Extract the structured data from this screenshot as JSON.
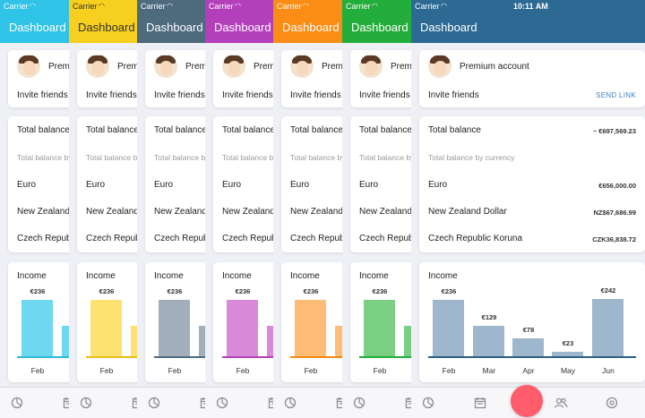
{
  "status": {
    "carrier": "Carrier",
    "time": "10:11 AM"
  },
  "nav": {
    "title": "Dashboard"
  },
  "account": {
    "name": "Premium account",
    "invite": "Invite friends",
    "send_link": "SEND LINK"
  },
  "balance": {
    "total_label": "Total balance",
    "total_value": "~ €697,569.23",
    "by_currency": "Total balance by currency",
    "rows": [
      {
        "name": "Euro",
        "value": "€656,000.00"
      },
      {
        "name": "New Zealand Dollar",
        "value": "NZ$67,686.99"
      },
      {
        "name": "Czech Republic Koruna",
        "value": "CZK36,838.72"
      }
    ]
  },
  "income": {
    "title": "Income",
    "bars": [
      {
        "month": "Feb",
        "label": "€236",
        "value": 236
      },
      {
        "month": "Mar",
        "label": "€129",
        "value": 129
      },
      {
        "month": "Apr",
        "label": "€78",
        "value": 78
      },
      {
        "month": "May",
        "label": "€23",
        "value": 23
      },
      {
        "month": "Jun",
        "label": "€242",
        "value": 242
      }
    ]
  },
  "themes": [
    {
      "name": "cyan",
      "nav": "#2fc3e8",
      "title": "#ffffff",
      "bar": "#6ed8f0",
      "axis": "#2fb9dd"
    },
    {
      "name": "yellow",
      "nav": "#f6cf1f",
      "title": "#333333",
      "bar": "#fde272",
      "axis": "#e8be16"
    },
    {
      "name": "slate",
      "nav": "#4e6a7d",
      "title": "#ffffff",
      "bar": "#a2afba",
      "axis": "#4e6a7d"
    },
    {
      "name": "purple",
      "nav": "#b43fbb",
      "title": "#ffffff",
      "bar": "#d98ad9",
      "axis": "#b43fbb"
    },
    {
      "name": "orange",
      "nav": "#fb8d16",
      "title": "#ffffff",
      "bar": "#fdbd76",
      "axis": "#f08a16"
    },
    {
      "name": "green",
      "nav": "#23ad3a",
      "title": "#ffffff",
      "bar": "#7bcf82",
      "axis": "#23ad3a"
    },
    {
      "name": "steel",
      "nav": "#2c6a93",
      "title": "#ffffff",
      "bar": "#9fb7cc",
      "axis": "#2c5f85"
    }
  ],
  "tabs": [
    {
      "icon": "pie-chart-icon"
    },
    {
      "icon": "calendar-icon"
    },
    {
      "icon": "add-icon"
    },
    {
      "icon": "people-icon"
    },
    {
      "icon": "settings-icon"
    }
  ]
}
